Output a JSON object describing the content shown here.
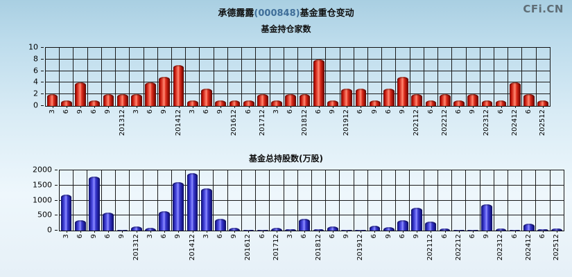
{
  "header": {
    "stock_name": "承德露露",
    "stock_code": "(000848)",
    "title_suffix": "基金重仓变动",
    "logo": "CFi.CN"
  },
  "colors": {
    "red_bar": "#dd2b1c",
    "blue_bar": "#4242d8",
    "grid": "#1a1a1a",
    "stock_code_text": "#3f6e99",
    "logo_text": "#5f6d75",
    "background_top": "#a9cfe2",
    "background_bottom": "#e6f0f7"
  },
  "chart_data": [
    {
      "type": "bar",
      "title": "基金持仓家数",
      "categories": [
        "3",
        "6",
        "9",
        "6",
        "9",
        "201312",
        "3",
        "6",
        "9",
        "201412",
        "3",
        "6",
        "9",
        "201612",
        "6",
        "201712",
        "3",
        "6",
        "201812",
        "6",
        "9",
        "201912",
        "6",
        "9",
        "6",
        "9",
        "202112",
        "6",
        "202212",
        "6",
        "9",
        "202312",
        "6",
        "202412",
        "6",
        "202512"
      ],
      "values": [
        2,
        1,
        4,
        1,
        2,
        2,
        2,
        4,
        5,
        7,
        1,
        3,
        1,
        1,
        1,
        2,
        1,
        2,
        2,
        8,
        1,
        3,
        3,
        1,
        3,
        5,
        2,
        1,
        2,
        1,
        2,
        1,
        1,
        4,
        2,
        1
      ],
      "xlabel": "",
      "ylabel": "",
      "ylim": [
        0,
        10
      ],
      "yticks": [
        0,
        2,
        4,
        6,
        8,
        10
      ],
      "grid": true,
      "legend": "none",
      "bar_color": "#dd2b1c",
      "bar_class": "red"
    },
    {
      "type": "bar",
      "title": "基金总持股数(万股)",
      "categories": [
        "3",
        "6",
        "9",
        "6",
        "9",
        "201312",
        "3",
        "6",
        "9",
        "201412",
        "3",
        "6",
        "9",
        "201612",
        "6",
        "201712",
        "3",
        "6",
        "201812",
        "6",
        "9",
        "201912",
        "6",
        "9",
        "6",
        "9",
        "202112",
        "6",
        "202212",
        "6",
        "9",
        "202312",
        "6",
        "202412",
        "6",
        "202512"
      ],
      "values": [
        1200,
        350,
        1800,
        600,
        15,
        140,
        90,
        650,
        1600,
        1900,
        1400,
        380,
        100,
        30,
        30,
        90,
        40,
        400,
        50,
        140,
        30,
        30,
        160,
        110,
        340,
        750,
        300,
        70,
        20,
        15,
        870,
        60,
        15,
        230,
        50,
        60
      ],
      "xlabel": "",
      "ylabel": "",
      "ylim": [
        0,
        2000
      ],
      "yticks": [
        0,
        500,
        1000,
        1500,
        2000
      ],
      "grid": true,
      "legend": "none",
      "bar_color": "#4242d8",
      "bar_class": "blue"
    }
  ]
}
